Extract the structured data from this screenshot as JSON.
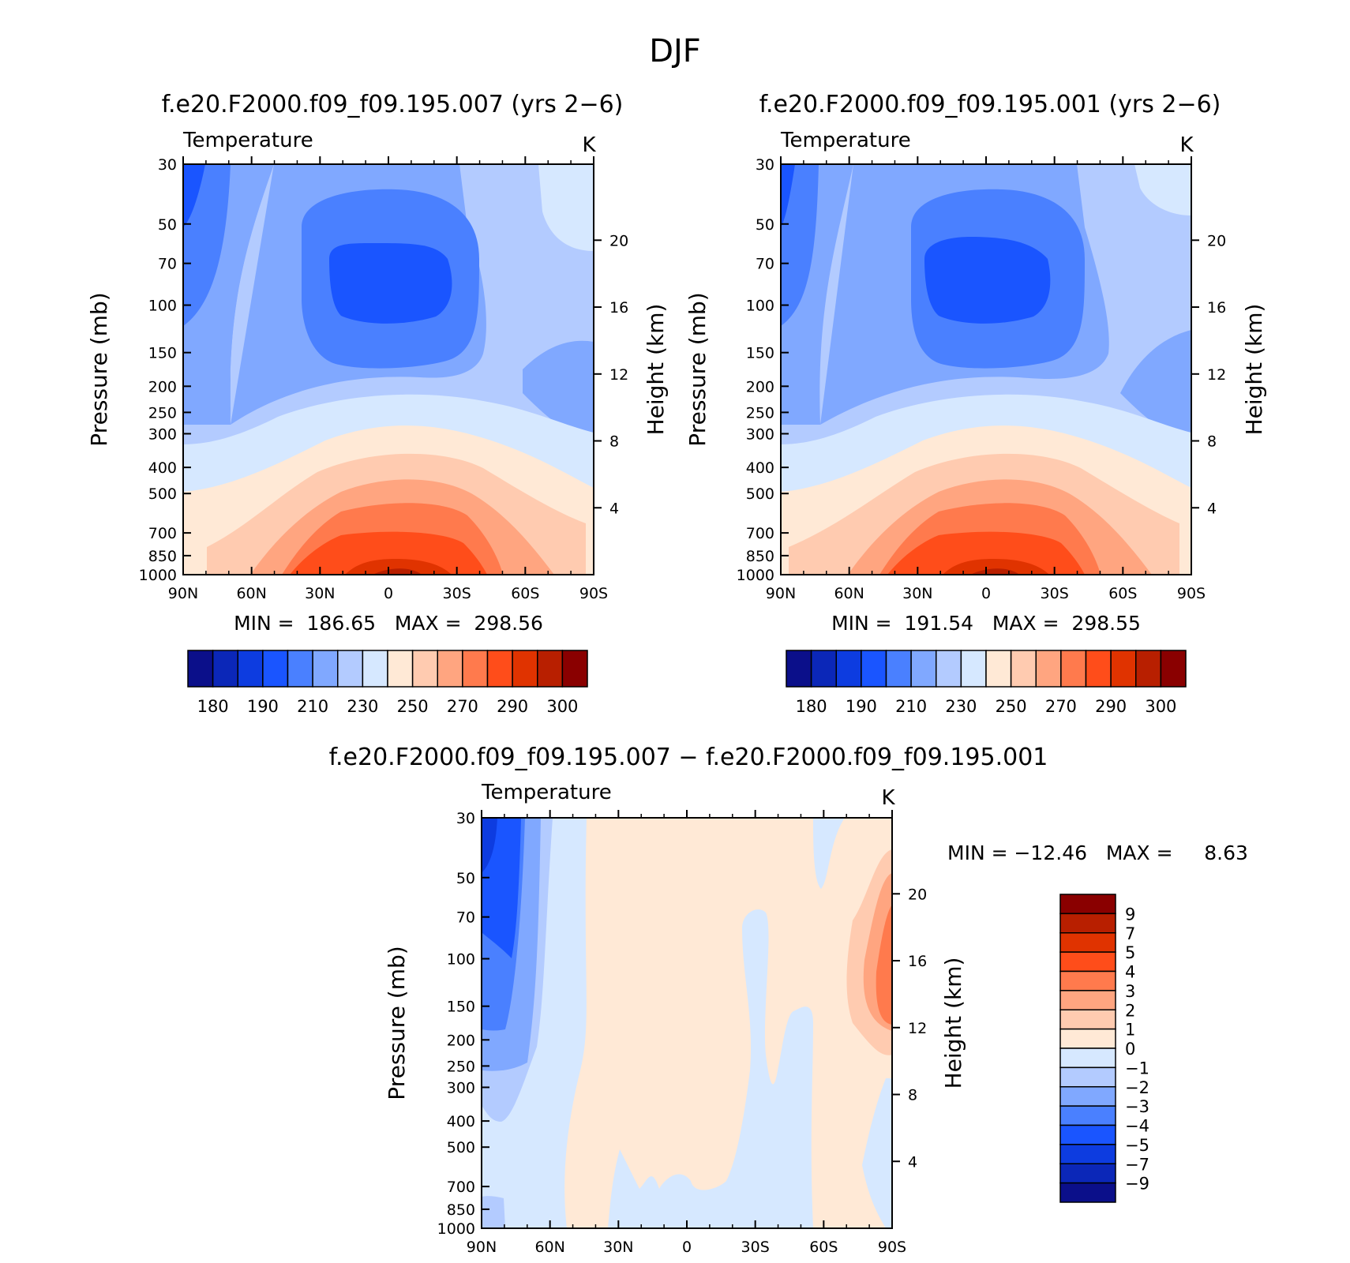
{
  "page_title": "DJF",
  "colors": {
    "abs_scale": [
      "#0b0f8a",
      "#0b27b8",
      "#0d3ce0",
      "#1a55ff",
      "#4a80ff",
      "#80a8ff",
      "#b3cbff",
      "#d6e8ff",
      "#ffe9d6",
      "#ffcbb0",
      "#ffa580",
      "#ff7a4d",
      "#ff4d1a",
      "#e03300",
      "#b81f00",
      "#8a0000"
    ],
    "diff_scale": [
      "#0b0f8a",
      "#0b27b8",
      "#0d3ce0",
      "#1a55ff",
      "#4a80ff",
      "#80a8ff",
      "#b3cbff",
      "#d6e8ff",
      "#ffe9d6",
      "#ffcbb0",
      "#ffa580",
      "#ff7a4d",
      "#ff4d1a",
      "#e03300",
      "#b81f00",
      "#8a0000"
    ]
  },
  "chart_data": [
    {
      "type": "heatmap",
      "panel": "top-left",
      "title": "f.e20.F2000.f09_f09.195.007 (yrs 2−6)",
      "variable": "Temperature",
      "units": "K",
      "xlabel": "",
      "ylabel": "Pressure (mb)",
      "y2label": "Height (km)",
      "x_ticks": [
        "90N",
        "60N",
        "30N",
        "0",
        "30S",
        "60S",
        "90S"
      ],
      "y_ticks": [
        "30",
        "50",
        "70",
        "100",
        "150",
        "200",
        "250",
        "300",
        "400",
        "500",
        "700",
        "850",
        "1000"
      ],
      "y2_ticks": [
        "20",
        "16",
        "12",
        "8",
        "4"
      ],
      "min_max_text": "MIN =  186.65   MAX =  298.56",
      "min": 186.65,
      "max": 298.56,
      "colorbar_labels": [
        "180",
        "190",
        "210",
        "230",
        "250",
        "270",
        "290",
        "300"
      ]
    },
    {
      "type": "heatmap",
      "panel": "top-right",
      "title": "f.e20.F2000.f09_f09.195.001 (yrs 2−6)",
      "variable": "Temperature",
      "units": "K",
      "xlabel": "",
      "ylabel": "Pressure (mb)",
      "y2label": "Height (km)",
      "x_ticks": [
        "90N",
        "60N",
        "30N",
        "0",
        "30S",
        "60S",
        "90S"
      ],
      "y_ticks": [
        "30",
        "50",
        "70",
        "100",
        "150",
        "200",
        "250",
        "300",
        "400",
        "500",
        "700",
        "850",
        "1000"
      ],
      "y2_ticks": [
        "20",
        "16",
        "12",
        "8",
        "4"
      ],
      "min_max_text": "MIN =  191.54   MAX =  298.55",
      "min": 191.54,
      "max": 298.55,
      "colorbar_labels": [
        "180",
        "190",
        "210",
        "230",
        "250",
        "270",
        "290",
        "300"
      ]
    },
    {
      "type": "heatmap",
      "panel": "bottom",
      "title": "f.e20.F2000.f09_f09.195.007 − f.e20.F2000.f09_f09.195.001",
      "variable": "Temperature",
      "units": "K",
      "xlabel": "",
      "ylabel": "Pressure (mb)",
      "y2label": "Height (km)",
      "x_ticks": [
        "90N",
        "60N",
        "30N",
        "0",
        "30S",
        "60S",
        "90S"
      ],
      "y_ticks": [
        "30",
        "50",
        "70",
        "100",
        "150",
        "200",
        "250",
        "300",
        "400",
        "500",
        "700",
        "850",
        "1000"
      ],
      "y2_ticks": [
        "20",
        "16",
        "12",
        "8",
        "4"
      ],
      "min_max_text": "MIN = −12.46   MAX =     8.63",
      "min": -12.46,
      "max": 8.63,
      "colorbar_labels": [
        "9",
        "7",
        "5",
        "4",
        "3",
        "2",
        "1",
        "0",
        "−1",
        "−2",
        "−3",
        "−4",
        "−5",
        "−7",
        "−9"
      ]
    }
  ]
}
